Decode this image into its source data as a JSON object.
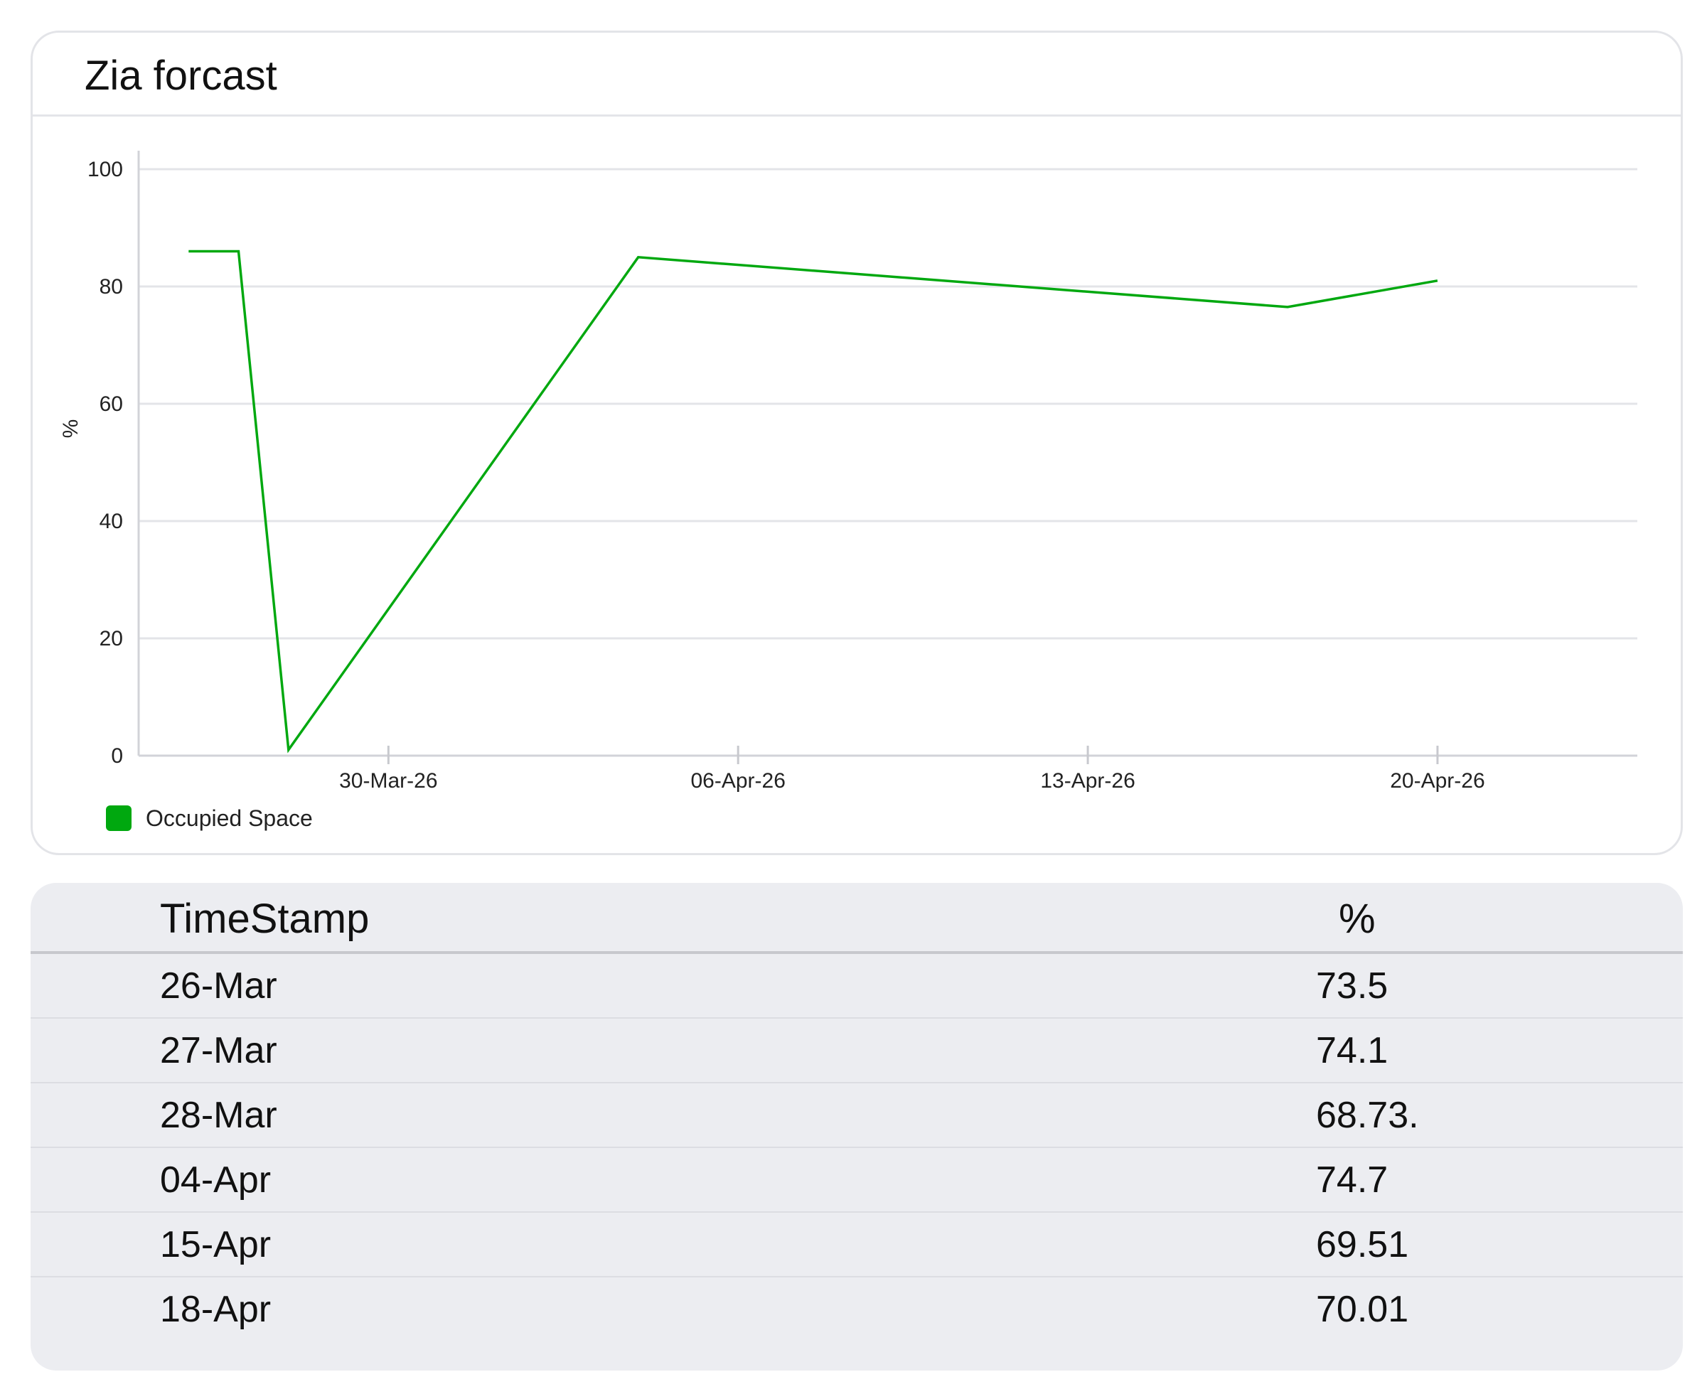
{
  "card": {
    "title": "Zia forcast"
  },
  "chart_data": {
    "type": "line",
    "title": "",
    "xlabel": "",
    "ylabel": "%",
    "ylim": [
      0,
      100
    ],
    "yticks": [
      0,
      20,
      40,
      60,
      80,
      100
    ],
    "xlim": [
      "2026-03-25",
      "2026-04-24"
    ],
    "xticks": [
      {
        "date": "2026-03-30",
        "label": "30-Mar-26"
      },
      {
        "date": "2026-04-06",
        "label": "06-Apr-26"
      },
      {
        "date": "2026-04-13",
        "label": "13-Apr-26"
      },
      {
        "date": "2026-04-20",
        "label": "20-Apr-26"
      }
    ],
    "grid": true,
    "legend_position": "bottom-left",
    "series": [
      {
        "name": "Occupied Space",
        "color": "#00a80f",
        "points": [
          {
            "x": "2026-03-26",
            "y": 86
          },
          {
            "x": "2026-03-27",
            "y": 86
          },
          {
            "x": "2026-03-28",
            "y": 1
          },
          {
            "x": "2026-04-04",
            "y": 85
          },
          {
            "x": "2026-04-17",
            "y": 76.5
          },
          {
            "x": "2026-04-20",
            "y": 81
          }
        ]
      }
    ]
  },
  "table": {
    "headers": {
      "time": "TimeStamp",
      "value": "%"
    },
    "rows": [
      {
        "time": "26-Mar",
        "value": "73.5"
      },
      {
        "time": "27-Mar",
        "value": "74.1"
      },
      {
        "time": "28-Mar",
        "value": "68.73."
      },
      {
        "time": "04-Apr",
        "value": "74.7"
      },
      {
        "time": "15-Apr",
        "value": "69.51"
      },
      {
        "time": "18-Apr",
        "value": "70.01"
      }
    ]
  }
}
